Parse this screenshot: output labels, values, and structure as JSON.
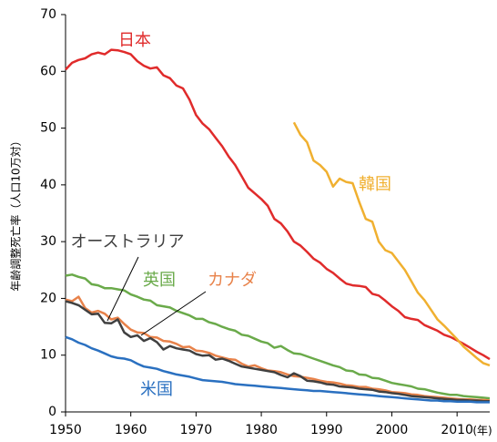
{
  "chart_data": {
    "type": "line",
    "y_axis_label": "年齢調整死亡率（人口10万対）",
    "x_unit_label": "(年)",
    "xlim": [
      1950,
      2015
    ],
    "xticks": [
      1950,
      1960,
      1970,
      1980,
      1990,
      2000,
      2010
    ],
    "ylim": [
      0,
      70
    ],
    "yticks": [
      0,
      10,
      20,
      30,
      40,
      50,
      60,
      70
    ],
    "x": [
      1950,
      1951,
      1952,
      1953,
      1954,
      1955,
      1956,
      1957,
      1958,
      1959,
      1960,
      1961,
      1962,
      1963,
      1964,
      1965,
      1966,
      1967,
      1968,
      1969,
      1970,
      1971,
      1972,
      1973,
      1974,
      1975,
      1976,
      1977,
      1978,
      1979,
      1980,
      1981,
      1982,
      1983,
      1984,
      1985,
      1986,
      1987,
      1988,
      1989,
      1990,
      1991,
      1992,
      1993,
      1994,
      1995,
      1996,
      1997,
      1998,
      1999,
      2000,
      2001,
      2002,
      2003,
      2004,
      2005,
      2006,
      2007,
      2008,
      2009,
      2010,
      2011,
      2012,
      2013,
      2014,
      2015
    ],
    "series": [
      {
        "name": "日本",
        "color": "#e02b2b",
        "values": [
          60.3,
          61.5,
          62,
          62.3,
          63,
          63.3,
          63,
          63.8,
          63.7,
          63.4,
          63,
          61.8,
          61,
          60.5,
          60.7,
          59.3,
          58.8,
          57.5,
          57,
          55,
          52.3,
          50.8,
          49.8,
          48.3,
          46.8,
          45,
          43.5,
          41.5,
          39.5,
          38.5,
          37.5,
          36.3,
          34,
          33.2,
          31.8,
          30,
          29.3,
          28.2,
          27,
          26.3,
          25.2,
          24.5,
          23.5,
          22.6,
          22.3,
          22.2,
          22,
          20.8,
          20.5,
          19.6,
          18.6,
          17.8,
          16.7,
          16.4,
          16.2,
          15.3,
          14.8,
          14.3,
          13.6,
          13.2,
          12.6,
          12,
          11.3,
          10.6,
          10,
          9.3
        ]
      },
      {
        "name": "韓国",
        "color": "#f0b030",
        "values": [
          null,
          null,
          null,
          null,
          null,
          null,
          null,
          null,
          null,
          null,
          null,
          null,
          null,
          null,
          null,
          null,
          null,
          null,
          null,
          null,
          null,
          null,
          null,
          null,
          null,
          null,
          null,
          null,
          null,
          null,
          null,
          null,
          null,
          null,
          null,
          51,
          48.8,
          47.5,
          44.3,
          43.5,
          42.3,
          39.7,
          41.1,
          40.5,
          40.3,
          37,
          34,
          33.5,
          30,
          28.5,
          28,
          26.5,
          25,
          23,
          21,
          19.7,
          18,
          16.3,
          15.2,
          14,
          12.8,
          11.5,
          10.5,
          9.5,
          8.6,
          8.2
        ]
      },
      {
        "name": "英国",
        "color": "#6aaa4a",
        "values": [
          24,
          24.2,
          23.8,
          23.5,
          22.5,
          22.3,
          21.8,
          21.8,
          21.6,
          21.4,
          20.7,
          20.3,
          19.8,
          19.6,
          18.8,
          18.6,
          18.4,
          17.8,
          17.4,
          17,
          16.4,
          16.4,
          15.8,
          15.5,
          15,
          14.6,
          14.3,
          13.6,
          13.4,
          12.9,
          12.4,
          12.1,
          11.3,
          11.6,
          10.9,
          10.3,
          10.2,
          9.8,
          9.4,
          9,
          8.6,
          8.2,
          7.9,
          7.3,
          7.2,
          6.6,
          6.5,
          6,
          5.9,
          5.5,
          5.1,
          4.9,
          4.7,
          4.5,
          4.1,
          4,
          3.7,
          3.4,
          3.2,
          3,
          3,
          2.8,
          2.7,
          2.6,
          2.5,
          2.4
        ]
      },
      {
        "name": "カナダ",
        "color": "#e8824a",
        "values": [
          19.8,
          19.5,
          20.3,
          18.3,
          17.5,
          17.8,
          17.3,
          16.3,
          16.6,
          15.5,
          14.5,
          14,
          13.9,
          13.2,
          13.1,
          12.5,
          12.4,
          12,
          11.4,
          11.5,
          10.8,
          10.7,
          10.4,
          9.9,
          9.6,
          9.3,
          9.2,
          8.5,
          8,
          8.2,
          7.7,
          7.3,
          7.2,
          7,
          6.6,
          6.3,
          6.2,
          6,
          5.8,
          5.5,
          5.3,
          5.2,
          5,
          4.7,
          4.6,
          4.4,
          4.4,
          4.1,
          4,
          3.8,
          3.5,
          3.4,
          3.3,
          3.1,
          3,
          2.8,
          2.7,
          2.6,
          2.5,
          2.4,
          2.3,
          2.2,
          2.2,
          2.1,
          2.1,
          2.0
        ]
      },
      {
        "name": "オーストラリア",
        "color": "#404040",
        "values": [
          19.5,
          19.2,
          18.8,
          18,
          17.2,
          17.3,
          15.7,
          15.6,
          16.3,
          14,
          13.2,
          13.5,
          12.5,
          13,
          12.3,
          11,
          11.6,
          11.2,
          11,
          10.8,
          10.2,
          9.9,
          10,
          9.2,
          9.4,
          9,
          8.5,
          8,
          7.8,
          7.6,
          7.4,
          7.2,
          7,
          6.5,
          6.1,
          6.8,
          6.3,
          5.5,
          5.4,
          5.2,
          4.9,
          4.8,
          4.5,
          4.4,
          4.3,
          4.1,
          4,
          3.9,
          3.6,
          3.5,
          3.3,
          3.2,
          3,
          2.8,
          2.7,
          2.6,
          2.5,
          2.4,
          2.3,
          2.2,
          2.1,
          2.1,
          2,
          2,
          1.9,
          1.9
        ]
      },
      {
        "name": "米国",
        "color": "#2a70c0",
        "values": [
          13.2,
          12.8,
          12.2,
          11.8,
          11.2,
          10.8,
          10.3,
          9.8,
          9.5,
          9.4,
          9.1,
          8.5,
          8,
          7.8,
          7.6,
          7.2,
          6.9,
          6.6,
          6.4,
          6.2,
          5.9,
          5.6,
          5.5,
          5.4,
          5.3,
          5.1,
          4.9,
          4.8,
          4.7,
          4.6,
          4.5,
          4.4,
          4.3,
          4.2,
          4.1,
          4,
          3.9,
          3.8,
          3.7,
          3.7,
          3.6,
          3.5,
          3.4,
          3.3,
          3.2,
          3.1,
          3,
          2.9,
          2.8,
          2.7,
          2.6,
          2.5,
          2.4,
          2.3,
          2.2,
          2.1,
          2,
          2,
          1.9,
          1.9,
          1.8,
          1.8,
          1.8,
          1.7,
          1.7,
          1.7
        ]
      }
    ]
  }
}
